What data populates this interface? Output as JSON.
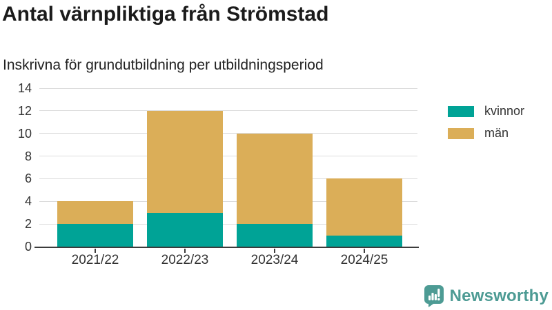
{
  "chart": {
    "title": "Antal värnpliktiga från Strömstad",
    "subtitle": "Inskrivna för grundutbildning per utbildningsperiod"
  },
  "chart_data": {
    "type": "bar",
    "stacked": true,
    "title": "Antal värnpliktiga från Strömstad",
    "subtitle": "Inskrivna för grundutbildning per utbildningsperiod",
    "categories": [
      "2021/22",
      "2022/23",
      "2023/24",
      "2024/25"
    ],
    "series": [
      {
        "name": "kvinnor",
        "color": "#00a396",
        "values": [
          2,
          3,
          2,
          1
        ]
      },
      {
        "name": "män",
        "color": "#dbae58",
        "values": [
          2,
          9,
          8,
          5
        ]
      }
    ],
    "stack_totals": [
      4,
      12,
      10,
      6
    ],
    "xlabel": "",
    "ylabel": "",
    "ylim": [
      0,
      14
    ],
    "yticks": [
      0,
      2,
      4,
      6,
      8,
      10,
      12,
      14
    ],
    "grid": true,
    "legend_position": "right"
  },
  "branding": {
    "logo_text": "Newsworthy",
    "logo_color": "#4d9b94",
    "logo_icon": "bar-chart-speech-bubble"
  }
}
